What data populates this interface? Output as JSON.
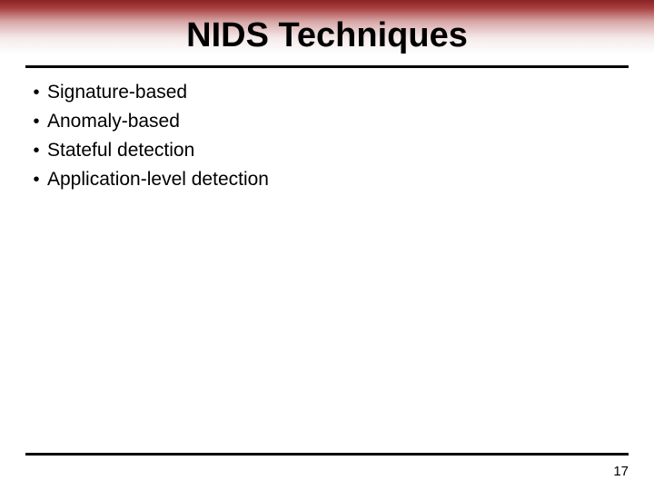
{
  "slide": {
    "title": "NIDS Techniques",
    "title_fontsize": 38,
    "title_color": "#000000",
    "bullets": [
      "Signature-based",
      "Anomaly-based",
      "Stateful detection",
      "Application-level detection"
    ],
    "bullet_marker": "•",
    "bullet_fontsize": 21,
    "bullet_color": "#000000",
    "page_number": "17",
    "page_number_fontsize": 15,
    "header_gradient": {
      "top_color": "#8a2323",
      "bottom_color": "#ffffff"
    },
    "rule_color": "#000000",
    "rule_thickness": 3,
    "background": "#ffffff"
  }
}
